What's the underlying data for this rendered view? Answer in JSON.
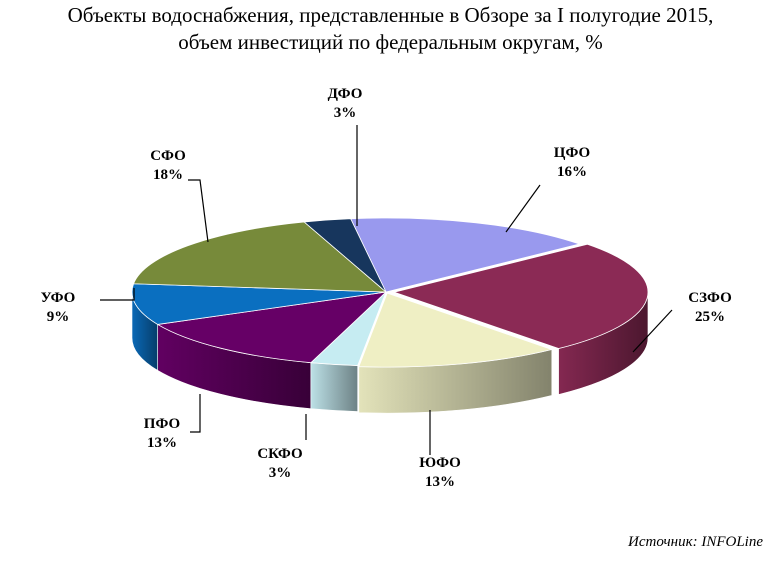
{
  "title": {
    "line1": "Объекты водоснабжения, представленные в Обзоре за I полугодие 2015,",
    "line2": "объем инвестиций по федеральным округам, %"
  },
  "source": "Источник: INFOLine",
  "chart_data": {
    "type": "pie",
    "style": "3d",
    "unit": "%",
    "slices": [
      {
        "label": "ЦФО",
        "value": 16,
        "display": "16%",
        "color": "#9999ee"
      },
      {
        "label": "СЗФО",
        "value": 25,
        "display": "25%",
        "color": "#8b2a55"
      },
      {
        "label": "ЮФО",
        "value": 13,
        "display": "13%",
        "color": "#efefc4"
      },
      {
        "label": "СКФО",
        "value": 3,
        "display": "3%",
        "color": "#c6ecf2"
      },
      {
        "label": "ПФО",
        "value": 13,
        "display": "13%",
        "color": "#660066"
      },
      {
        "label": "УФО",
        "value": 9,
        "display": "9%",
        "color": "#0a6fc0"
      },
      {
        "label": "СФО",
        "value": 18,
        "display": "18%",
        "color": "#778a3a"
      },
      {
        "label": "ДФО",
        "value": 3,
        "display": "3%",
        "color": "#17365d"
      }
    ]
  }
}
